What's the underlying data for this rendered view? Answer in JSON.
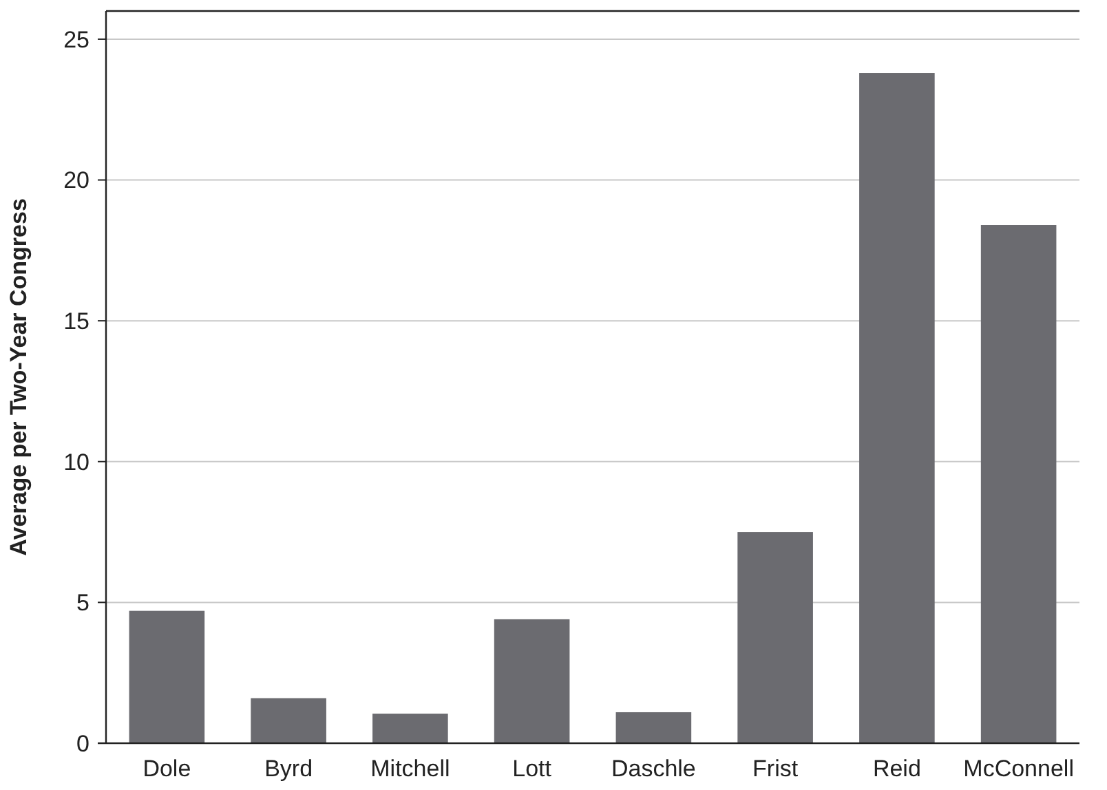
{
  "chart_data": {
    "type": "bar",
    "ylabel": "Average per Two-Year Congress",
    "categories": [
      "Dole",
      "Byrd",
      "Mitchell",
      "Lott",
      "Daschle",
      "Frist",
      "Reid",
      "McConnell"
    ],
    "values": [
      4.7,
      1.6,
      1.05,
      4.4,
      1.1,
      7.5,
      23.8,
      18.4
    ],
    "color": "#6b6b70",
    "ylim": [
      0,
      26
    ],
    "yticks": [
      0,
      5,
      10,
      15,
      20,
      25
    ],
    "grid": "y"
  }
}
